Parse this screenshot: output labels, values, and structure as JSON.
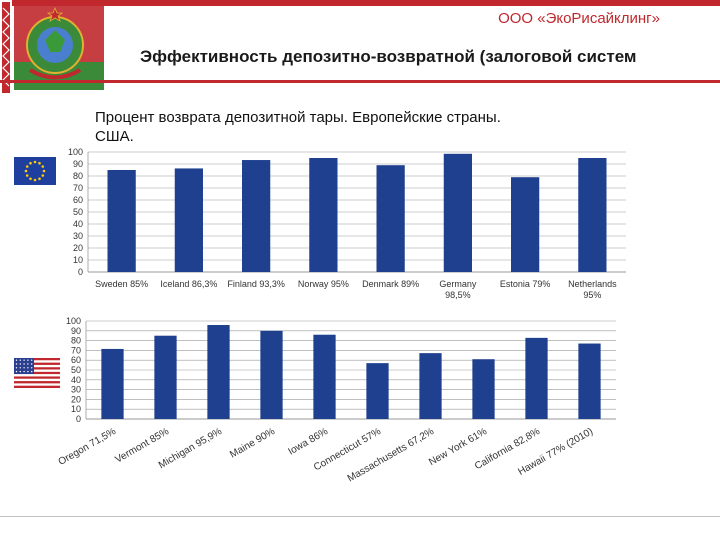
{
  "header": {
    "company": "ООО «ЭкоРисайклинг»",
    "title": "Эффективность депозитно-возвратной (залоговой систем"
  },
  "colors": {
    "bar": "#1f3f8f",
    "accent_red": "#c0282d",
    "accent_green": "#3a8a3a",
    "grid": "#999999"
  },
  "icons": {
    "emblem": "belarus-emblem-icon",
    "eu_flag": "eu-flag-icon",
    "us_flag": "us-flag-icon"
  },
  "chart_data": [
    {
      "type": "bar",
      "title_lines": [
        "Процент возврата депозитной тары. Европейские страны.",
        "США."
      ],
      "categories": [
        [
          "Sweden 85%"
        ],
        [
          "Iceland 86,3%"
        ],
        [
          "Finland 93,3%"
        ],
        [
          "Norway 95%"
        ],
        [
          "Denmark 89%"
        ],
        [
          "Germany",
          "98,5%"
        ],
        [
          "Estonia 79%"
        ],
        [
          "Netherlands",
          "95%"
        ]
      ],
      "values": [
        85,
        86.3,
        93.3,
        95,
        89,
        98.5,
        79,
        95
      ],
      "ylim": [
        0,
        100
      ],
      "yticks": [
        0,
        10,
        20,
        30,
        40,
        50,
        60,
        70,
        80,
        90,
        100
      ],
      "grid": true
    },
    {
      "type": "bar",
      "categories": [
        "Oregon 71,5%",
        "Vermont 85%",
        "Michigan 95,9%",
        "Maine 90%",
        "Iowa 86%",
        "Connecticut 57%",
        "Massachusetts 67,2%",
        "New York 61%",
        "California 82,8%",
        "Hawaii 77% (2010)"
      ],
      "values": [
        71.5,
        85,
        95.9,
        90,
        86,
        57,
        67.2,
        61,
        82.8,
        77
      ],
      "ylim": [
        0,
        100
      ],
      "yticks": [
        0,
        10,
        20,
        30,
        40,
        50,
        60,
        70,
        80,
        90,
        100
      ],
      "grid": true
    }
  ]
}
